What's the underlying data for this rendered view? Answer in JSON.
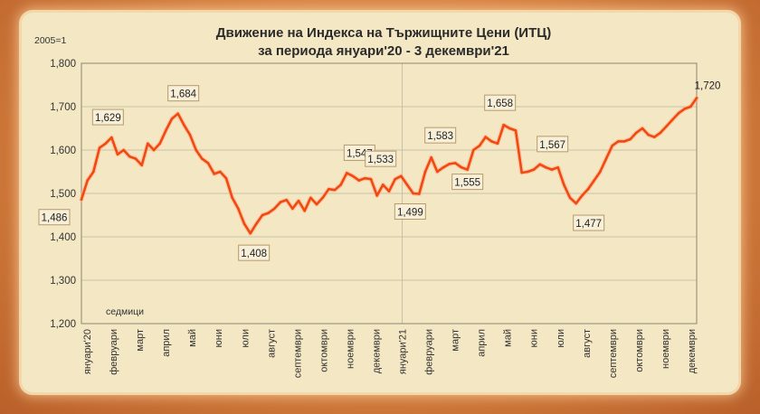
{
  "chart_data": {
    "type": "line",
    "title": "Движение на Индекса на Тържищните Цени (ИТЦ)",
    "subtitle": "за периода януари'20 - 3 декември'21",
    "unit_label": "2005=1",
    "series_label": "седмици",
    "ylim": [
      1.2,
      1.8
    ],
    "yticks": [
      "1,200",
      "1,300",
      "1,400",
      "1,500",
      "1,600",
      "1,700",
      "1,800"
    ],
    "xticks": [
      "януари'20",
      "февруари",
      "март",
      "април",
      "май",
      "юни",
      "юли",
      "август",
      "септември",
      "октомври",
      "ноември",
      "декември",
      "януари'21",
      "февруари",
      "март",
      "април",
      "май",
      "юни",
      "юли",
      "август",
      "септември",
      "октомври",
      "ноември",
      "декември"
    ],
    "grid": true,
    "values": [
      1.486,
      1.53,
      1.55,
      1.605,
      1.615,
      1.629,
      1.59,
      1.6,
      1.585,
      1.58,
      1.565,
      1.615,
      1.6,
      1.615,
      1.645,
      1.672,
      1.684,
      1.658,
      1.635,
      1.6,
      1.58,
      1.57,
      1.545,
      1.55,
      1.535,
      1.49,
      1.465,
      1.43,
      1.408,
      1.43,
      1.45,
      1.455,
      1.465,
      1.48,
      1.485,
      1.465,
      1.483,
      1.46,
      1.49,
      1.475,
      1.49,
      1.51,
      1.508,
      1.52,
      1.547,
      1.54,
      1.53,
      1.535,
      1.533,
      1.495,
      1.52,
      1.505,
      1.533,
      1.54,
      1.52,
      1.5,
      1.499,
      1.55,
      1.583,
      1.55,
      1.56,
      1.568,
      1.57,
      1.56,
      1.555,
      1.6,
      1.61,
      1.63,
      1.62,
      1.615,
      1.658,
      1.65,
      1.645,
      1.548,
      1.55,
      1.555,
      1.567,
      1.56,
      1.555,
      1.56,
      1.52,
      1.49,
      1.477,
      1.495,
      1.51,
      1.53,
      1.55,
      1.58,
      1.61,
      1.62,
      1.62,
      1.625,
      1.64,
      1.65,
      1.635,
      1.63,
      1.64,
      1.655,
      1.67,
      1.685,
      1.695,
      1.7,
      1.72
    ],
    "annotations": [
      {
        "index": 0,
        "label": "1,486"
      },
      {
        "index": 5,
        "label": "1,629"
      },
      {
        "index": 16,
        "label": "1,684"
      },
      {
        "index": 28,
        "label": "1,408"
      },
      {
        "index": 44,
        "label": "1,547"
      },
      {
        "index": 52,
        "label": "1,533"
      },
      {
        "index": 56,
        "label": "1,499"
      },
      {
        "index": 58,
        "label": "1,583"
      },
      {
        "index": 64,
        "label": "1,555"
      },
      {
        "index": 70,
        "label": "1,658"
      },
      {
        "index": 76,
        "label": "1,567"
      },
      {
        "index": 82,
        "label": "1,477"
      },
      {
        "index": 102,
        "label": "1,720"
      }
    ],
    "colors": {
      "line": "#f04a12",
      "grid": "#c9c0a8",
      "label_bg": "#f7efd8",
      "label_border": "#b79a6a"
    }
  }
}
